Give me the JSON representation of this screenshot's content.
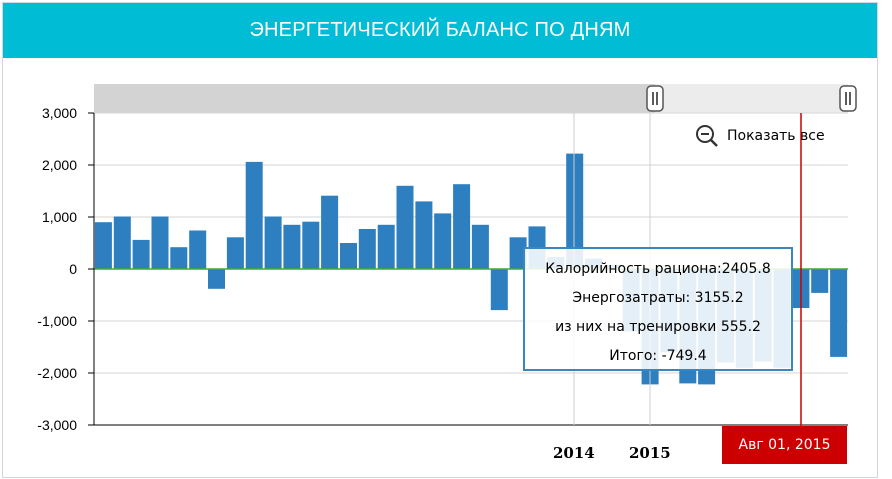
{
  "header": {
    "title": "ЭНЕРГЕТИЧЕСКИЙ БАЛАНС ПО ДНЯМ"
  },
  "controls": {
    "show_all_label": "Показать все"
  },
  "tooltip": {
    "lines": [
      "Калорийность рациона:2405.8",
      "Энергозатраты: 3155.2",
      "из них на тренировки 555.2",
      "Итого: -749.4"
    ]
  },
  "cursor": {
    "date_label": "Авг 01, 2015"
  },
  "colors": {
    "bar": "#2e7fbf",
    "zero_line": "#44aa33",
    "header": "#00bcd4",
    "cursor": "#cc0000"
  },
  "chart_data": {
    "type": "bar",
    "title": "ЭНЕРГЕТИЧЕСКИЙ БАЛАНС ПО ДНЯМ",
    "xlabel": "",
    "ylabel": "",
    "ylim": [
      -3000,
      3000
    ],
    "y_ticks": [
      3000,
      2000,
      1000,
      0,
      -1000,
      -2000,
      -3000
    ],
    "y_tick_labels": [
      "3,000",
      "2,000",
      "1,000",
      "0",
      "-1,000",
      "-2,000",
      "-3,000"
    ],
    "x_year_labels": [
      "2014",
      "2015"
    ],
    "values": [
      900,
      1010,
      560,
      1010,
      420,
      740,
      -380,
      610,
      2060,
      1010,
      850,
      910,
      1410,
      500,
      770,
      850,
      1600,
      1300,
      1070,
      1630,
      850,
      -790,
      610,
      820,
      230,
      2220,
      200,
      80,
      -1200,
      -2220,
      -1600,
      -2200,
      -2220,
      -1800,
      -1900,
      -1780,
      -1900,
      -749.4,
      -460,
      -1690
    ],
    "grid": true,
    "legend": "none"
  }
}
